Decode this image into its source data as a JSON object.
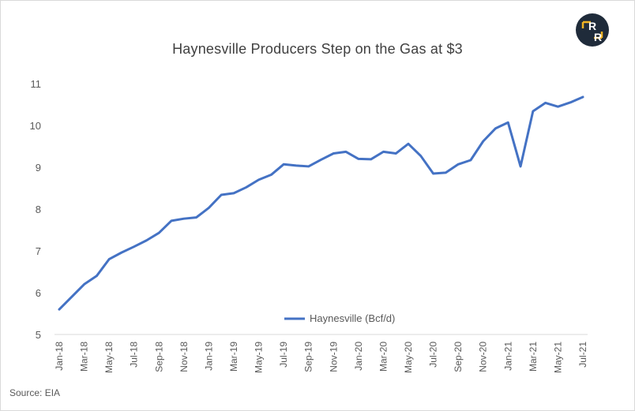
{
  "source": "Source: EIA",
  "logo": {
    "icon": "rbn-logo-icon",
    "letter_top": "R",
    "letter_bottom": "R",
    "bg": "#1f2b3a",
    "accent": "#f0b323"
  },
  "chart_data": {
    "type": "line",
    "title": "Haynesville Producers Step on the Gas at $3",
    "xlabel": "",
    "ylabel": "",
    "ylim": [
      5,
      11
    ],
    "yticks": [
      5,
      6,
      7,
      8,
      9,
      10,
      11
    ],
    "grid": false,
    "legend": "bottom-center",
    "x": [
      "Jan-18",
      "Feb-18",
      "Mar-18",
      "Apr-18",
      "May-18",
      "Jun-18",
      "Jul-18",
      "Aug-18",
      "Sep-18",
      "Oct-18",
      "Nov-18",
      "Dec-18",
      "Jan-19",
      "Feb-19",
      "Mar-19",
      "Apr-19",
      "May-19",
      "Jun-19",
      "Jul-19",
      "Aug-19",
      "Sep-19",
      "Oct-19",
      "Nov-19",
      "Dec-19",
      "Jan-20",
      "Feb-20",
      "Mar-20",
      "Apr-20",
      "May-20",
      "Jun-20",
      "Jul-20",
      "Aug-20",
      "Sep-20",
      "Oct-20",
      "Nov-20",
      "Dec-20",
      "Jan-21",
      "Feb-21",
      "Mar-21",
      "Apr-21",
      "May-21",
      "Jun-21",
      "Jul-21"
    ],
    "x_tick_labels": [
      "Jan-18",
      "Mar-18",
      "May-18",
      "Jul-18",
      "Sep-18",
      "Nov-18",
      "Jan-19",
      "Mar-19",
      "May-19",
      "Jul-19",
      "Sep-19",
      "Nov-19",
      "Jan-20",
      "Mar-20",
      "May-20",
      "Jul-20",
      "Sep-20",
      "Nov-20",
      "Jan-21",
      "Mar-21",
      "May-21",
      "Jul-21"
    ],
    "series": [
      {
        "name": "Haynesville (Bcf/d)",
        "color": "#4472c4",
        "values": [
          5.6,
          5.9,
          6.2,
          6.4,
          6.8,
          6.96,
          7.1,
          7.25,
          7.43,
          7.72,
          7.77,
          7.8,
          8.03,
          8.34,
          8.38,
          8.52,
          8.7,
          8.82,
          9.07,
          9.04,
          9.02,
          9.18,
          9.33,
          9.37,
          9.2,
          9.19,
          9.37,
          9.33,
          9.56,
          9.27,
          8.85,
          8.87,
          9.07,
          9.17,
          9.62,
          9.93,
          10.07,
          9.02,
          10.34,
          10.54,
          10.45,
          10.55,
          10.68
        ]
      }
    ]
  }
}
